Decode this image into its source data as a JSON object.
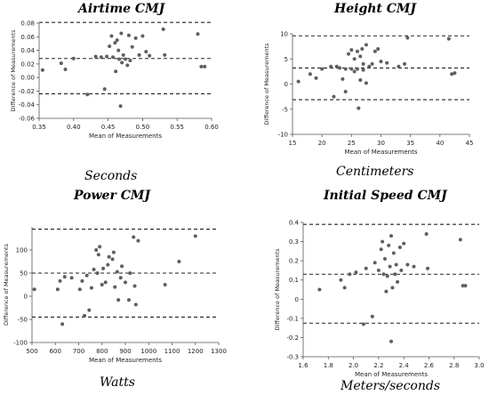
{
  "chart_data": [
    {
      "type": "scatter",
      "title": "Airtime CMJ",
      "unit": "Seconds",
      "xlabel": "Mean of Measurements",
      "ylabel": "Difference of Measurements",
      "xlim": [
        0.35,
        0.6
      ],
      "ylim": [
        -0.06,
        0.08
      ],
      "xticks": [
        0.35,
        0.4,
        0.45,
        0.5,
        0.55,
        0.6
      ],
      "xticklabels": [
        "0.35",
        "0.40",
        "0.45",
        "0.50",
        "0.55",
        "0.60"
      ],
      "yticks": [
        -0.06,
        -0.04,
        -0.02,
        0,
        0.02,
        0.04,
        0.06,
        0.08
      ],
      "yticklabels": [
        "-0.06",
        "-0.04",
        "-0.02",
        "0.00",
        "0.02",
        "0.04",
        "0.06",
        "0.08"
      ],
      "hlines": [
        0.081,
        0.028,
        -0.024
      ],
      "points": [
        [
          0.355,
          0.011
        ],
        [
          0.382,
          0.021
        ],
        [
          0.388,
          0.012
        ],
        [
          0.4,
          0.028
        ],
        [
          0.42,
          -0.025
        ],
        [
          0.432,
          0.031
        ],
        [
          0.44,
          0.03
        ],
        [
          0.445,
          -0.017
        ],
        [
          0.448,
          0.031
        ],
        [
          0.452,
          0.046
        ],
        [
          0.455,
          0.061
        ],
        [
          0.457,
          0.03
        ],
        [
          0.46,
          0.051
        ],
        [
          0.461,
          0.009
        ],
        [
          0.463,
          0.055
        ],
        [
          0.465,
          0.04
        ],
        [
          0.466,
          0.027
        ],
        [
          0.468,
          -0.042
        ],
        [
          0.469,
          0.065
        ],
        [
          0.47,
          0.022
        ],
        [
          0.472,
          0.033
        ],
        [
          0.475,
          0.027
        ],
        [
          0.478,
          0.018
        ],
        [
          0.48,
          0.062
        ],
        [
          0.482,
          0.025
        ],
        [
          0.485,
          0.045
        ],
        [
          0.49,
          0.058
        ],
        [
          0.495,
          0.033
        ],
        [
          0.5,
          0.061
        ],
        [
          0.505,
          0.038
        ],
        [
          0.51,
          0.032
        ],
        [
          0.53,
          0.071
        ],
        [
          0.532,
          0.033
        ],
        [
          0.58,
          0.064
        ],
        [
          0.585,
          0.016
        ],
        [
          0.59,
          0.016
        ]
      ]
    },
    {
      "type": "scatter",
      "title": "Height CMJ",
      "unit": "Centimeters",
      "xlabel": "Mean of Measurements",
      "ylabel": "Difference of Measurements",
      "xlim": [
        15,
        45
      ],
      "ylim": [
        -10,
        10
      ],
      "xticks": [
        15,
        20,
        25,
        30,
        35,
        40,
        45
      ],
      "xticklabels": [
        "15",
        "20",
        "25",
        "30",
        "35",
        "40",
        "45"
      ],
      "yticks": [
        -10,
        -5,
        0,
        5,
        10
      ],
      "yticklabels": [
        "-10",
        "-5",
        "0",
        "5",
        "10"
      ],
      "hlines": [
        9.6,
        3.2,
        -3.1
      ],
      "points": [
        [
          16,
          0.5
        ],
        [
          18,
          2.0
        ],
        [
          19,
          1.2
        ],
        [
          20,
          3.0
        ],
        [
          21.5,
          3.5
        ],
        [
          22,
          -2.5
        ],
        [
          22.5,
          3.5
        ],
        [
          23,
          3.2
        ],
        [
          23.5,
          1.0
        ],
        [
          24,
          -1.5
        ],
        [
          24,
          3.0
        ],
        [
          24.5,
          6.0
        ],
        [
          25,
          3.0
        ],
        [
          25,
          6.8
        ],
        [
          25.5,
          2.5
        ],
        [
          25.5,
          5.0
        ],
        [
          26,
          3.0
        ],
        [
          26,
          6.5
        ],
        [
          26.2,
          -4.8
        ],
        [
          26.5,
          0.8
        ],
        [
          26.5,
          5.5
        ],
        [
          26.8,
          7.0
        ],
        [
          27,
          2.8
        ],
        [
          27,
          4.0
        ],
        [
          27.5,
          0.2
        ],
        [
          27.5,
          7.8
        ],
        [
          28,
          3.5
        ],
        [
          28.5,
          4.0
        ],
        [
          29,
          6.5
        ],
        [
          29.5,
          7.0
        ],
        [
          30,
          4.5
        ],
        [
          31,
          4.2
        ],
        [
          33,
          3.5
        ],
        [
          34,
          4.0
        ],
        [
          34.5,
          9.2
        ],
        [
          41.5,
          9.0
        ],
        [
          42,
          2.0
        ],
        [
          42.5,
          2.2
        ]
      ]
    },
    {
      "type": "scatter",
      "title": "Power CMJ",
      "unit": "Watts",
      "xlabel": "Mean of Measurements",
      "ylabel": "Difference of Measurements",
      "xlim": [
        500,
        1300
      ],
      "ylim": [
        -100,
        150
      ],
      "xticks": [
        500,
        600,
        700,
        800,
        900,
        1000,
        1100,
        1200,
        1300
      ],
      "xticklabels": [
        "500",
        "600",
        "700",
        "800",
        "900",
        "1000",
        "1100",
        "1200",
        "1300"
      ],
      "yticks": [
        -100,
        -50,
        0,
        50,
        100
      ],
      "yticklabels": [
        "-100",
        "-50",
        "0",
        "50",
        "100"
      ],
      "hlines": [
        145,
        50,
        -45
      ],
      "points": [
        [
          510,
          15
        ],
        [
          610,
          15
        ],
        [
          620,
          33
        ],
        [
          630,
          -60
        ],
        [
          640,
          42
        ],
        [
          670,
          40
        ],
        [
          705,
          15
        ],
        [
          715,
          33
        ],
        [
          725,
          -42
        ],
        [
          735,
          45
        ],
        [
          745,
          -30
        ],
        [
          755,
          18
        ],
        [
          765,
          58
        ],
        [
          775,
          100
        ],
        [
          780,
          50
        ],
        [
          785,
          90
        ],
        [
          790,
          107
        ],
        [
          800,
          25
        ],
        [
          805,
          60
        ],
        [
          815,
          30
        ],
        [
          825,
          68
        ],
        [
          830,
          85
        ],
        [
          845,
          80
        ],
        [
          850,
          95
        ],
        [
          855,
          20
        ],
        [
          865,
          53
        ],
        [
          870,
          -8
        ],
        [
          880,
          40
        ],
        [
          885,
          65
        ],
        [
          900,
          30
        ],
        [
          915,
          -8
        ],
        [
          920,
          50
        ],
        [
          935,
          128
        ],
        [
          940,
          22
        ],
        [
          945,
          -18
        ],
        [
          955,
          120
        ],
        [
          1070,
          25
        ],
        [
          1130,
          75
        ],
        [
          1200,
          130
        ]
      ]
    },
    {
      "type": "scatter",
      "title": "Initial Speed CMJ",
      "unit": "Meters/seconds",
      "xlabel": "Mean of Measurements",
      "ylabel": "Difference of Measurements",
      "xlim": [
        1.6,
        3.0
      ],
      "ylim": [
        -0.3,
        0.4
      ],
      "xticks": [
        1.6,
        1.8,
        2.0,
        2.2,
        2.4,
        2.6,
        2.8,
        3.0
      ],
      "xticklabels": [
        "1.6",
        "1.8",
        "2.0",
        "2.2",
        "2.4",
        "2.6",
        "2.8",
        "3.0"
      ],
      "yticks": [
        -0.3,
        -0.2,
        -0.1,
        0,
        0.1,
        0.2,
        0.3,
        0.4
      ],
      "yticklabels": [
        "-0.3",
        "-0.2",
        "-0.1",
        "0",
        "0.1",
        "0.2",
        "0.3",
        "0.4"
      ],
      "hlines": [
        0.39,
        0.13,
        -0.125
      ],
      "points": [
        [
          1.73,
          0.05
        ],
        [
          1.9,
          0.1
        ],
        [
          1.93,
          0.06
        ],
        [
          1.97,
          0.13
        ],
        [
          2.02,
          0.14
        ],
        [
          2.08,
          -0.13
        ],
        [
          2.1,
          0.16
        ],
        [
          2.15,
          -0.09
        ],
        [
          2.17,
          0.19
        ],
        [
          2.2,
          0.15
        ],
        [
          2.22,
          0.26
        ],
        [
          2.23,
          0.3
        ],
        [
          2.24,
          0.13
        ],
        [
          2.25,
          0.21
        ],
        [
          2.26,
          0.04
        ],
        [
          2.27,
          0.12
        ],
        [
          2.28,
          0.28
        ],
        [
          2.29,
          0.17
        ],
        [
          2.3,
          0.33
        ],
        [
          2.3,
          -0.22
        ],
        [
          2.31,
          0.06
        ],
        [
          2.32,
          0.24
        ],
        [
          2.33,
          0.13
        ],
        [
          2.34,
          0.18
        ],
        [
          2.35,
          0.09
        ],
        [
          2.37,
          0.27
        ],
        [
          2.38,
          0.15
        ],
        [
          2.4,
          0.29
        ],
        [
          2.43,
          0.18
        ],
        [
          2.48,
          0.17
        ],
        [
          2.58,
          0.34
        ],
        [
          2.59,
          0.16
        ],
        [
          2.85,
          0.31
        ],
        [
          2.87,
          0.07
        ],
        [
          2.89,
          0.07
        ]
      ]
    }
  ]
}
